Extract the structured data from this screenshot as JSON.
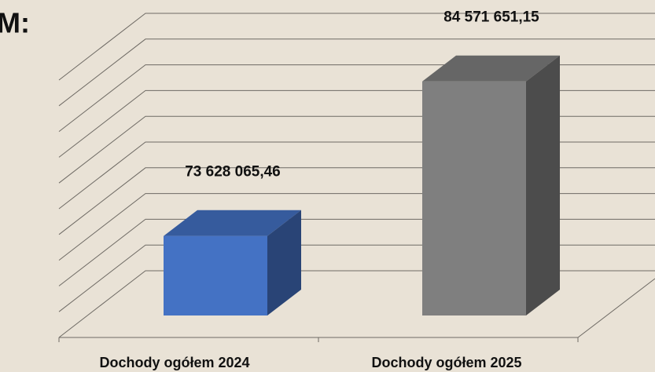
{
  "chart_data": {
    "type": "bar3d",
    "title": "M:",
    "categories": [
      "Dochody ogółem 2024",
      "Dochody ogółem 2025"
    ],
    "series": [
      {
        "name": null,
        "colors": [
          "#4472c4",
          "#7f7f7f"
        ],
        "values": [
          73628065.46,
          84571651.15
        ],
        "value_labels": [
          "73 628 065,46",
          "84 571 651,15"
        ]
      }
    ],
    "ylim": [
      68000000,
      88000000
    ],
    "yticks": [
      68000000,
      70000000,
      72000000,
      74000000,
      76000000,
      78000000,
      80000000,
      82000000,
      84000000,
      86000000,
      88000000
    ],
    "grid": true
  }
}
